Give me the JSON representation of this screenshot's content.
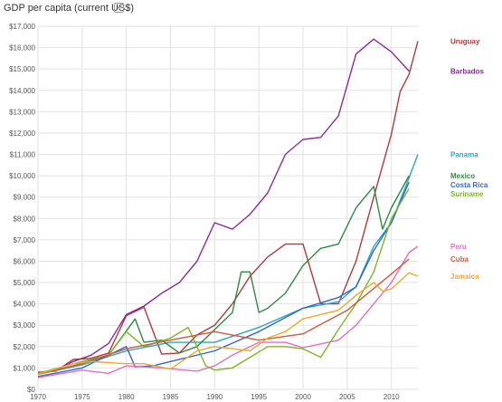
{
  "chart_data": {
    "type": "line",
    "title": "GDP per capita (current US$)",
    "xlabel": "",
    "ylabel": "",
    "xlim": [
      1970,
      2013
    ],
    "ylim": [
      0,
      17000
    ],
    "grid": true,
    "legend": "inline-right",
    "x_ticks": [
      "1970",
      "1975",
      "1980",
      "1985",
      "1990",
      "1995",
      "2000",
      "2005",
      "2010"
    ],
    "y_ticks": [
      "$0",
      "$1,000",
      "$2,000",
      "$3,000",
      "$4,000",
      "$5,000",
      "$6,000",
      "$7,000",
      "$8,000",
      "$9,000",
      "$10,000",
      "$11,000",
      "$12,000",
      "$13,000",
      "$14,000",
      "$15,000",
      "$16,000",
      "$17,000"
    ],
    "series": [
      {
        "name": "Uruguay",
        "color": "#b03a3a",
        "x": [
          1970,
          1972,
          1974,
          1976,
          1978,
          1980,
          1982,
          1984,
          1986,
          1988,
          1990,
          1992,
          1994,
          1996,
          1998,
          2000,
          2002,
          2004,
          2006,
          2008,
          2010,
          2011,
          2012,
          2013
        ],
        "y": [
          800,
          850,
          1400,
          1450,
          1700,
          3450,
          3850,
          1650,
          1700,
          2550,
          3000,
          4000,
          5300,
          6200,
          6800,
          6800,
          4000,
          4000,
          6000,
          9000,
          11950,
          13950,
          14750,
          16300
        ]
      },
      {
        "name": "Barbados",
        "color": "#8b2a9b",
        "x": [
          1970,
          1972,
          1974,
          1976,
          1978,
          1980,
          1982,
          1984,
          1986,
          1988,
          1990,
          1992,
          1994,
          1996,
          1998,
          2000,
          2002,
          2004,
          2006,
          2008,
          2010,
          2012
        ],
        "y": [
          750,
          900,
          1300,
          1600,
          2150,
          3500,
          3900,
          4500,
          5000,
          6000,
          7800,
          7500,
          8200,
          9200,
          11000,
          11700,
          11800,
          12800,
          15700,
          16400,
          15800,
          14900
        ]
      },
      {
        "name": "Panama",
        "color": "#2aa7c0",
        "x": [
          1970,
          1975,
          1980,
          1985,
          1990,
          1995,
          2000,
          2004,
          2006,
          2008,
          2010,
          2012,
          2013
        ],
        "y": [
          700,
          1150,
          1800,
          2200,
          2200,
          2900,
          3800,
          4100,
          4800,
          6700,
          7800,
          9900,
          11000
        ]
      },
      {
        "name": "Mexico",
        "color": "#2e8b3a",
        "x": [
          1970,
          1974,
          1978,
          1981,
          1982,
          1984,
          1986,
          1988,
          1990,
          1992,
          1993,
          1994,
          1995,
          1996,
          1998,
          2000,
          2002,
          2004,
          2006,
          2008,
          2009,
          2010,
          2012
        ],
        "y": [
          700,
          1100,
          1600,
          3300,
          2200,
          2300,
          1700,
          2000,
          2800,
          3600,
          5500,
          5500,
          3600,
          3800,
          4500,
          5800,
          6600,
          6800,
          8500,
          9500,
          7500,
          8500,
          10000
        ]
      },
      {
        "name": "Costa Rica",
        "color": "#3566c9",
        "x": [
          1970,
          1975,
          1980,
          1981,
          1983,
          1985,
          1990,
          1995,
          2000,
          2004,
          2006,
          2008,
          2010,
          2012
        ],
        "y": [
          600,
          1000,
          2000,
          1050,
          1100,
          1300,
          1800,
          2700,
          3800,
          4300,
          4800,
          6500,
          7800,
          9700
        ]
      },
      {
        "name": "Suriname",
        "color": "#7ab825",
        "x": [
          1970,
          1975,
          1978,
          1980,
          1982,
          1985,
          1987,
          1989,
          1990,
          1992,
          1994,
          1996,
          1998,
          2000,
          2001,
          2002,
          2004,
          2006,
          2008,
          2010,
          2012
        ],
        "y": [
          750,
          1300,
          1600,
          2700,
          2000,
          2400,
          2900,
          1100,
          900,
          1000,
          1500,
          2000,
          2000,
          1900,
          1700,
          1500,
          2800,
          4000,
          5500,
          8000,
          9400
        ]
      },
      {
        "name": "Peru",
        "color": "#e070c0",
        "x": [
          1970,
          1975,
          1978,
          1980,
          1984,
          1988,
          1990,
          1992,
          1995,
          1998,
          2000,
          2004,
          2006,
          2008,
          2010,
          2012,
          2013
        ],
        "y": [
          550,
          900,
          750,
          1100,
          1000,
          850,
          1100,
          1600,
          2200,
          2200,
          1950,
          2300,
          3000,
          4000,
          5000,
          6400,
          6700
        ]
      },
      {
        "name": "Cuba",
        "color": "#d05a3a",
        "x": [
          1970,
          1975,
          1980,
          1985,
          1990,
          1995,
          2000,
          2005,
          2010,
          2012
        ],
        "y": [
          700,
          1200,
          1900,
          2300,
          2700,
          2300,
          2600,
          3700,
          5400,
          6100
        ]
      },
      {
        "name": "Jamaica",
        "color": "#f0a82a",
        "x": [
          1970,
          1974,
          1976,
          1978,
          1980,
          1982,
          1985,
          1988,
          1990,
          1994,
          1996,
          1998,
          2000,
          2004,
          2006,
          2008,
          2009,
          2010,
          2012,
          2013
        ],
        "y": [
          700,
          1200,
          1300,
          1250,
          1200,
          1200,
          950,
          1800,
          2000,
          1800,
          2400,
          2700,
          3300,
          3700,
          4400,
          5000,
          4600,
          4700,
          5450,
          5300
        ]
      }
    ]
  }
}
